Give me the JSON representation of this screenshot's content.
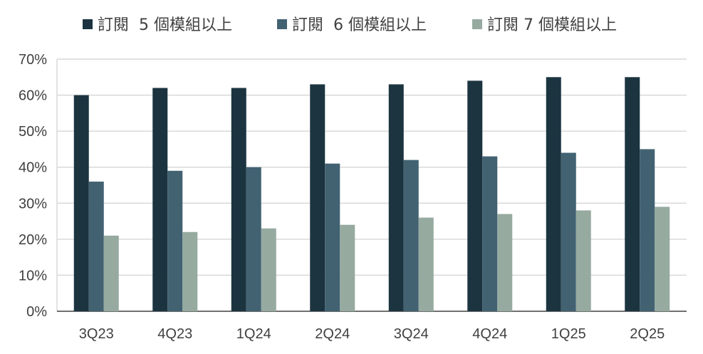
{
  "chart_data": {
    "type": "bar",
    "title": "",
    "xlabel": "",
    "ylabel": "",
    "categories": [
      "3Q23",
      "4Q23",
      "1Q24",
      "2Q24",
      "3Q24",
      "4Q24",
      "1Q25",
      "2Q25"
    ],
    "series": [
      {
        "name": "訂閱  5 個模組以上",
        "color": "#1b3440",
        "values": [
          60,
          62,
          62,
          63,
          63,
          64,
          65,
          65
        ]
      },
      {
        "name": "訂閱  6 個模組以上",
        "color": "#426272",
        "values": [
          36,
          39,
          40,
          41,
          42,
          43,
          44,
          45
        ]
      },
      {
        "name": "訂閱 7 個模組以上",
        "color": "#96aaa0",
        "values": [
          21,
          22,
          23,
          24,
          26,
          27,
          28,
          29
        ]
      }
    ],
    "ylim": [
      0,
      70
    ],
    "yticks": [
      "0%",
      "10%",
      "20%",
      "30%",
      "40%",
      "50%",
      "60%",
      "70%"
    ],
    "grid": true,
    "legend_position": "top"
  }
}
